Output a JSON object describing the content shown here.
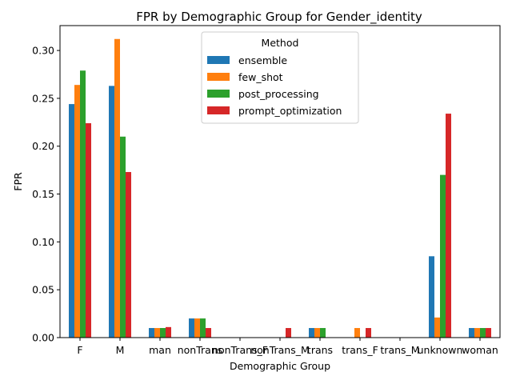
{
  "chart_data": {
    "type": "bar",
    "title": "FPR by Demographic Group for Gender_identity",
    "xlabel": "Demographic Group",
    "ylabel": "FPR",
    "ylim": [
      0,
      0.326
    ],
    "yticks": [
      "0.00",
      "0.05",
      "0.10",
      "0.15",
      "0.20",
      "0.25",
      "0.30"
    ],
    "grid": false,
    "legend": {
      "title": "Method",
      "placement": "upper-center"
    },
    "categories": [
      "F",
      "M",
      "man",
      "nonTrans",
      "nonTrans_F",
      "nonTrans_M",
      "trans",
      "trans_F",
      "trans_M",
      "unknown",
      "woman"
    ],
    "category_labels": [
      "F",
      "M",
      "man",
      "nonTrans",
      "nonTrans_F",
      "nonTrans_M",
      "trans",
      "trans_F",
      "trans_M",
      "unknown",
      "woman"
    ],
    "series": [
      {
        "name": "ensemble",
        "color": "#1f77b4",
        "values": [
          0.244,
          0.263,
          0.01,
          0.02,
          0,
          0,
          0.01,
          0,
          0,
          0.085,
          0.01
        ]
      },
      {
        "name": "few_shot",
        "color": "#ff7f0e",
        "values": [
          0.264,
          0.312,
          0.01,
          0.02,
          0,
          0,
          0.01,
          0.01,
          0,
          0.021,
          0.01
        ]
      },
      {
        "name": "post_processing",
        "color": "#2ca02c",
        "values": [
          0.279,
          0.21,
          0.01,
          0.02,
          0,
          0,
          0.01,
          0,
          0,
          0.17,
          0.01
        ]
      },
      {
        "name": "prompt_optimization",
        "color": "#d62728",
        "values": [
          0.224,
          0.173,
          0.011,
          0.01,
          0,
          0.01,
          0,
          0.01,
          0,
          0.234,
          0.01
        ]
      }
    ]
  }
}
